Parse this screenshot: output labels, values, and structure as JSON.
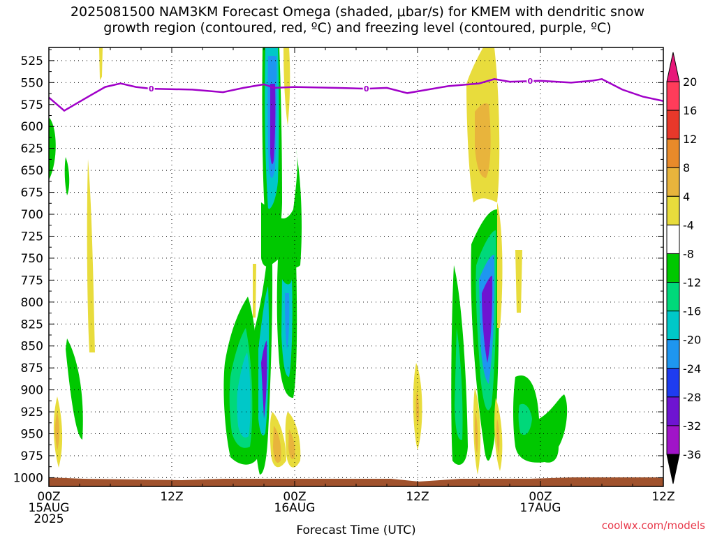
{
  "title_line1": "2025081500 NAM3KM Forecast Omega (shaded, μbar/s) for KMEM with dendritic snow",
  "title_line2": "growth region (contoured, red, ºC) and freezing level (contoured, purple, ºC)",
  "x_axis_title": "Forecast Time (UTC)",
  "credit": "coolwx.com/models",
  "chart_data": {
    "type": "heatmap",
    "ylabel": "",
    "xlabel": "Forecast Time (UTC)",
    "y_ticks": [
      "525",
      "550",
      "575",
      "600",
      "625",
      "650",
      "675",
      "700",
      "725",
      "750",
      "775",
      "800",
      "825",
      "850",
      "875",
      "900",
      "925",
      "950",
      "975",
      "1000"
    ],
    "x_ticks": [
      {
        "label": "00Z",
        "sub1": "15AUG",
        "sub2": "2025"
      },
      {
        "label": "12Z",
        "sub1": "",
        "sub2": ""
      },
      {
        "label": "00Z",
        "sub1": "16AUG",
        "sub2": ""
      },
      {
        "label": "12Z",
        "sub1": "",
        "sub2": ""
      },
      {
        "label": "00Z",
        "sub1": "17AUG",
        "sub2": ""
      },
      {
        "label": "12Z",
        "sub1": "",
        "sub2": ""
      }
    ],
    "xlim_hours": [
      0,
      60
    ],
    "ylim_hPa": [
      510,
      1010
    ],
    "grid": true,
    "colorbar": {
      "labels": [
        "20",
        "16",
        "12",
        "8",
        "4",
        "-4",
        "-8",
        "-12",
        "-16",
        "-20",
        "-24",
        "-28",
        "-32",
        "-36"
      ],
      "colors": [
        "#ff3c5a",
        "#e8382a",
        "#e88a2a",
        "#e8b43c",
        "#e8dc3c",
        "#ffffff",
        "#00c800",
        "#00d87a",
        "#00c8c8",
        "#1e96f0",
        "#1e3cf0",
        "#6e14d2",
        "#a014c8",
        "#a0a0a0"
      ]
    },
    "freezing_level": {
      "label": "0",
      "points": [
        [
          0,
          567
        ],
        [
          1.5,
          582
        ],
        [
          4,
          565
        ],
        [
          5.5,
          555
        ],
        [
          7,
          551
        ],
        [
          8.5,
          555
        ],
        [
          10,
          557
        ],
        [
          14,
          558
        ],
        [
          17,
          561
        ],
        [
          19,
          556
        ],
        [
          21,
          552
        ],
        [
          22,
          556
        ],
        [
          24,
          555
        ],
        [
          28,
          556
        ],
        [
          31,
          557
        ],
        [
          33,
          556
        ],
        [
          35,
          562
        ],
        [
          37,
          558
        ],
        [
          39,
          554
        ],
        [
          42,
          551
        ],
        [
          43.5,
          546
        ],
        [
          45,
          549
        ],
        [
          48,
          548
        ],
        [
          51,
          550
        ],
        [
          53,
          548
        ],
        [
          54,
          546
        ],
        [
          56,
          558
        ],
        [
          58,
          566
        ],
        [
          60,
          571
        ]
      ],
      "label_at_hours": [
        10,
        31,
        47
      ]
    }
  },
  "colorbar_labels_ui": [
    "20",
    "16",
    "12",
    "8",
    "4",
    "-4",
    "-8",
    "-12",
    "-16",
    "-20",
    "-24",
    "-28",
    "-32",
    "-36"
  ]
}
